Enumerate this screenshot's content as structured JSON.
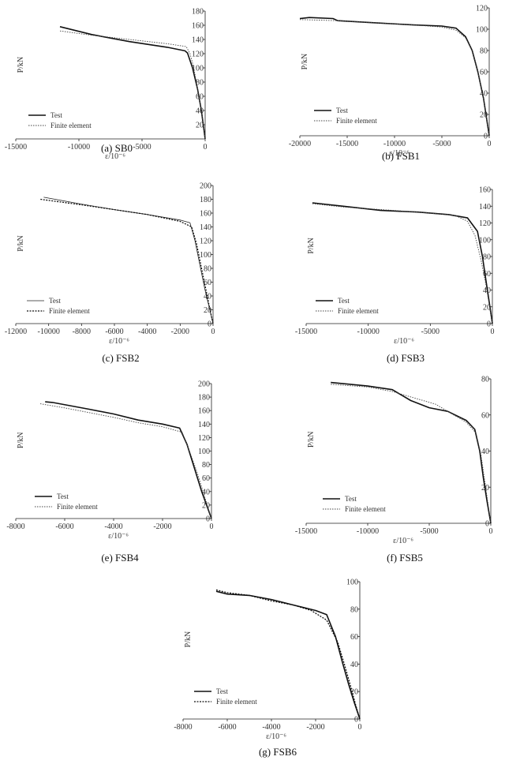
{
  "chart_data": [
    {
      "type": "line",
      "caption": "(a) SB0",
      "xlabel": "ε/10⁻⁶",
      "ylabel": "P/kN",
      "xlim": [
        -15000,
        0
      ],
      "ylim": [
        0,
        180
      ],
      "xticks": [
        "-15000",
        "-10000",
        "-5000",
        "0"
      ],
      "xtick_values": [
        -15000,
        -10000,
        -5000,
        0
      ],
      "yticks": [
        "20",
        "40",
        "60",
        "80",
        "100",
        "120",
        "140",
        "160",
        "180"
      ],
      "ytick_values": [
        20,
        40,
        60,
        80,
        100,
        120,
        140,
        160,
        180
      ],
      "legend": [
        "Test",
        "Finite element"
      ],
      "legend_style": [
        "solid",
        "dotted"
      ],
      "series": [
        {
          "name": "Test",
          "x": [
            -11500,
            -9000,
            -6000,
            -3000,
            -1600,
            -1400,
            -1000,
            -600,
            -300,
            0
          ],
          "y": [
            158,
            147,
            137,
            129,
            124,
            121,
            100,
            70,
            40,
            0
          ]
        },
        {
          "name": "Finite element",
          "x": [
            -11500,
            -9000,
            -6000,
            -3000,
            -1500,
            -1200,
            -900,
            -600,
            -300,
            0
          ],
          "y": [
            152,
            146,
            140,
            134,
            130,
            120,
            100,
            70,
            40,
            0
          ]
        }
      ]
    },
    {
      "type": "line",
      "caption": "(b) FSB1",
      "xlabel": "ε/10⁻⁶",
      "ylabel": "P/kN",
      "xlim": [
        -20000,
        0
      ],
      "ylim": [
        0,
        120
      ],
      "xticks": [
        "-20000",
        "-15000",
        "-10000",
        "-5000",
        "0"
      ],
      "xtick_values": [
        -20000,
        -15000,
        -10000,
        -5000,
        0
      ],
      "yticks": [
        "0",
        "20",
        "40",
        "60",
        "80",
        "100",
        "120"
      ],
      "ytick_values": [
        0,
        20,
        40,
        60,
        80,
        100,
        120
      ],
      "legend": [
        "Test",
        "Finite element"
      ],
      "legend_style": [
        "solid",
        "dotted"
      ],
      "series": [
        {
          "name": "Test",
          "x": [
            -20000,
            -19000,
            -16500,
            -16000,
            -12000,
            -8000,
            -5000,
            -3500,
            -2500,
            -1800,
            -1200,
            -600,
            0
          ],
          "y": [
            110,
            111,
            110,
            108,
            106,
            104,
            103,
            101,
            93,
            80,
            60,
            35,
            0
          ]
        },
        {
          "name": "Finite element",
          "x": [
            -20000,
            -16000,
            -12000,
            -8000,
            -5000,
            -3500,
            -2500,
            -1800,
            -1200,
            -600,
            0
          ],
          "y": [
            109,
            108,
            106,
            104,
            102,
            99,
            92,
            80,
            60,
            35,
            0
          ]
        }
      ]
    },
    {
      "type": "line",
      "caption": "(c) FSB2",
      "xlabel": "ε/10⁻⁶",
      "ylabel": "P/kN",
      "xlim": [
        -12000,
        0
      ],
      "ylim": [
        0,
        200
      ],
      "xticks": [
        "-12000",
        "-10000",
        "-8000",
        "-6000",
        "-4000",
        "-2000",
        "0"
      ],
      "xtick_values": [
        -12000,
        -10000,
        -8000,
        -6000,
        -4000,
        -2000,
        0
      ],
      "yticks": [
        "0",
        "20",
        "40",
        "60",
        "80",
        "100",
        "120",
        "140",
        "160",
        "180",
        "200"
      ],
      "ytick_values": [
        0,
        20,
        40,
        60,
        80,
        100,
        120,
        140,
        160,
        180,
        200
      ],
      "legend": [
        "Test",
        "Finite element"
      ],
      "legend_style": [
        "thin-solid",
        "dotted-bold"
      ],
      "series": [
        {
          "name": "Test",
          "x": [
            -10300,
            -8000,
            -6000,
            -4000,
            -2000,
            -1400,
            -1100,
            -800,
            -500,
            -250,
            0
          ],
          "y": [
            183,
            173,
            165,
            158,
            150,
            146,
            120,
            85,
            50,
            25,
            0
          ]
        },
        {
          "name": "Finite element",
          "x": [
            -10500,
            -8000,
            -6000,
            -4000,
            -2000,
            -1300,
            -1000,
            -700,
            -400,
            -200,
            0
          ],
          "y": [
            180,
            172,
            165,
            158,
            148,
            140,
            115,
            80,
            45,
            22,
            0
          ]
        }
      ]
    },
    {
      "type": "line",
      "caption": "(d) FSB3",
      "xlabel": "ε/10⁻⁶",
      "ylabel": "P/kN",
      "xlim": [
        -15000,
        0
      ],
      "ylim": [
        0,
        160
      ],
      "xticks": [
        "-15000",
        "-10000",
        "-5000",
        "0"
      ],
      "xtick_values": [
        -15000,
        -10000,
        -5000,
        0
      ],
      "yticks": [
        "0",
        "20",
        "40",
        "60",
        "80",
        "100",
        "120",
        "140",
        "160"
      ],
      "ytick_values": [
        0,
        20,
        40,
        60,
        80,
        100,
        120,
        140,
        160
      ],
      "legend": [
        "Test",
        "Finite element"
      ],
      "legend_style": [
        "solid",
        "dotted"
      ],
      "series": [
        {
          "name": "Test",
          "x": [
            -14500,
            -12000,
            -9000,
            -6000,
            -3500,
            -2000,
            -1200,
            -800,
            -500,
            -250,
            0
          ],
          "y": [
            144,
            140,
            135,
            133,
            130,
            126,
            110,
            80,
            50,
            25,
            0
          ]
        },
        {
          "name": "Finite element",
          "x": [
            -14500,
            -12000,
            -9000,
            -6000,
            -3000,
            -2000,
            -1400,
            -900,
            -500,
            -250,
            0
          ],
          "y": [
            143,
            139,
            136,
            133,
            129,
            122,
            105,
            75,
            45,
            22,
            0
          ]
        }
      ]
    },
    {
      "type": "line",
      "caption": "(e) FSB4",
      "xlabel": "ε/10⁻⁶",
      "ylabel": "P/kN",
      "xlim": [
        -8000,
        0
      ],
      "ylim": [
        0,
        200
      ],
      "xticks": [
        "-8000",
        "-6000",
        "-4000",
        "-2000",
        "0"
      ],
      "xtick_values": [
        -8000,
        -6000,
        -4000,
        -2000,
        0
      ],
      "yticks": [
        "0",
        "20",
        "40",
        "60",
        "80",
        "100",
        "120",
        "140",
        "160",
        "180",
        "200"
      ],
      "ytick_values": [
        0,
        20,
        40,
        60,
        80,
        100,
        120,
        140,
        160,
        180,
        200
      ],
      "legend": [
        "Test",
        "Finite element"
      ],
      "legend_style": [
        "solid",
        "dotted"
      ],
      "series": [
        {
          "name": "Test",
          "x": [
            -6800,
            -6500,
            -5000,
            -4000,
            -3000,
            -2000,
            -1300,
            -1000,
            -700,
            -400,
            -200,
            0
          ],
          "y": [
            173,
            172,
            162,
            155,
            146,
            140,
            134,
            110,
            75,
            40,
            20,
            0
          ]
        },
        {
          "name": "Finite element",
          "x": [
            -7000,
            -6000,
            -5000,
            -4000,
            -3000,
            -2000,
            -1200,
            -900,
            -600,
            -300,
            0
          ],
          "y": [
            170,
            164,
            157,
            150,
            142,
            136,
            128,
            100,
            70,
            35,
            0
          ]
        }
      ]
    },
    {
      "type": "line",
      "caption": "(f) FSB5",
      "xlabel": "ε/10⁻⁶",
      "ylabel": "P/kN",
      "xlim": [
        -15000,
        0
      ],
      "ylim": [
        0,
        80
      ],
      "xticks": [
        "-15000",
        "-10000",
        "-5000",
        "0"
      ],
      "xtick_values": [
        -15000,
        -10000,
        -5000,
        0
      ],
      "yticks": [
        "0",
        "20",
        "40",
        "60",
        "80"
      ],
      "ytick_values": [
        0,
        20,
        40,
        60,
        80
      ],
      "legend": [
        "Test",
        "Finite element"
      ],
      "legend_style": [
        "solid",
        "dotted"
      ],
      "series": [
        {
          "name": "Test",
          "x": [
            -13000,
            -10000,
            -8000,
            -6500,
            -5000,
            -3500,
            -2000,
            -1300,
            -900,
            -600,
            -300,
            0
          ],
          "y": [
            78,
            76,
            74,
            68,
            64,
            62,
            57,
            52,
            40,
            25,
            12,
            0
          ]
        },
        {
          "name": "Finite element",
          "x": [
            -13000,
            -10000,
            -8000,
            -6500,
            -4500,
            -3000,
            -2000,
            -1200,
            -800,
            -500,
            -250,
            0
          ],
          "y": [
            77,
            75.5,
            73,
            70,
            66,
            60,
            56,
            50,
            38,
            24,
            12,
            0
          ]
        }
      ]
    },
    {
      "type": "line",
      "caption": "(g) FSB6",
      "xlabel": "ε/10⁻⁶",
      "ylabel": "P/kN",
      "xlim": [
        -8000,
        0
      ],
      "ylim": [
        0,
        100
      ],
      "xticks": [
        "-8000",
        "-6000",
        "-4000",
        "-2000",
        "0"
      ],
      "xtick_values": [
        -8000,
        -6000,
        -4000,
        -2000,
        0
      ],
      "yticks": [
        "0",
        "20",
        "40",
        "60",
        "80",
        "100"
      ],
      "ytick_values": [
        0,
        20,
        40,
        60,
        80,
        100
      ],
      "legend": [
        "Test",
        "Finite element"
      ],
      "legend_style": [
        "solid",
        "dotted-bold"
      ],
      "series": [
        {
          "name": "Test",
          "x": [
            -6500,
            -6000,
            -5000,
            -4000,
            -3000,
            -2000,
            -1500,
            -1100,
            -800,
            -500,
            -250,
            0
          ],
          "y": [
            93,
            91,
            90,
            87,
            83,
            79,
            76,
            60,
            42,
            25,
            12,
            0
          ]
        },
        {
          "name": "Finite element",
          "x": [
            -6500,
            -6000,
            -5000,
            -4000,
            -3000,
            -2200,
            -1500,
            -1000,
            -700,
            -400,
            -200,
            0
          ],
          "y": [
            94,
            92,
            90,
            86,
            83,
            79,
            72,
            56,
            40,
            23,
            11,
            0
          ]
        }
      ]
    }
  ]
}
